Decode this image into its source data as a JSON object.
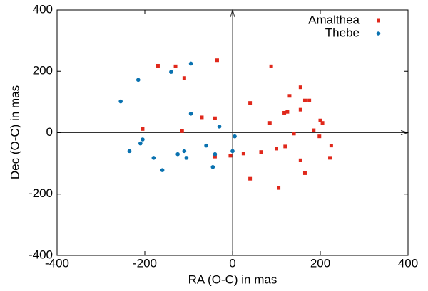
{
  "chart_data": {
    "type": "scatter",
    "xlabel": "RA (O-C) in mas",
    "ylabel": "Dec (O-C) in mas",
    "xlim": [
      -400,
      400
    ],
    "ylim": [
      -400,
      400
    ],
    "xticks": [
      -400,
      -200,
      0,
      200,
      400
    ],
    "yticks": [
      -400,
      -200,
      0,
      200,
      400
    ],
    "legend": "top-right",
    "series": [
      {
        "name": "Amalthea",
        "color": "#e0281b",
        "marker": "square",
        "x": [
          -170,
          -130,
          -35,
          -110,
          88,
          155,
          130,
          165,
          175,
          125,
          118,
          155,
          40,
          85,
          200,
          205,
          140,
          185,
          198,
          -205,
          -115,
          -70,
          -40,
          -5,
          -40,
          25,
          65,
          100,
          120,
          155,
          225,
          222,
          165,
          40,
          105
        ],
        "y": [
          218,
          216,
          236,
          178,
          216,
          148,
          120,
          105,
          105,
          68,
          65,
          75,
          97,
          32,
          40,
          32,
          -3,
          8,
          -12,
          12,
          5,
          50,
          47,
          -75,
          -78,
          -68,
          -63,
          -52,
          -45,
          -90,
          -42,
          -82,
          -132,
          -150,
          -180
        ]
      },
      {
        "name": "Thebe",
        "color": "#0a72b0",
        "marker": "circle",
        "x": [
          -255,
          -215,
          -140,
          -95,
          -95,
          -30,
          -235,
          -210,
          -205,
          -180,
          -160,
          -125,
          -110,
          -105,
          -60,
          -40,
          -45,
          0,
          5
        ],
        "y": [
          102,
          172,
          198,
          225,
          62,
          20,
          -60,
          -35,
          -22,
          -82,
          -122,
          -70,
          -60,
          -82,
          -42,
          -70,
          -112,
          -60,
          -12
        ]
      }
    ]
  }
}
